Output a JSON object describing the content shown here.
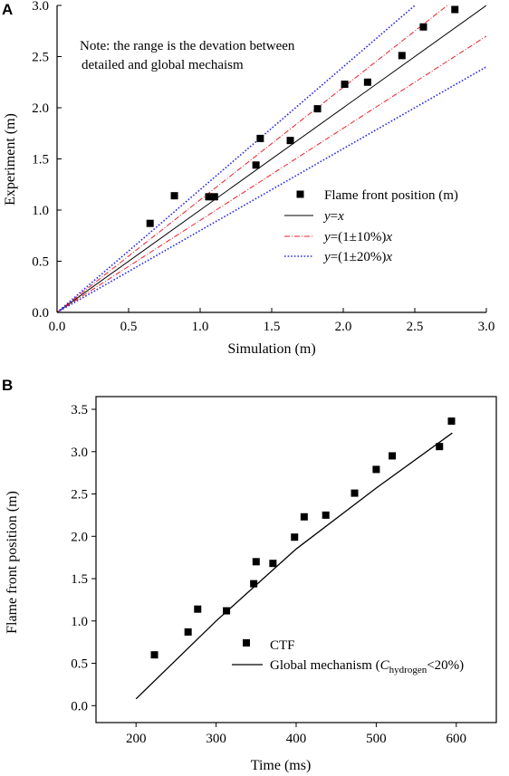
{
  "figure": {
    "panel_a_letter": "A",
    "panel_b_letter": "B"
  },
  "chart_data": [
    {
      "type": "scatter",
      "panel": "A",
      "xlabel": "Simulation (m)",
      "ylabel": "Experiment (m)",
      "xlim": [
        0,
        3.0
      ],
      "ylim": [
        0,
        3.0
      ],
      "x_ticks": [
        "0.0",
        "0.5",
        "1.0",
        "1.5",
        "2.0",
        "2.5",
        "3.0"
      ],
      "y_ticks": [
        "0.0",
        "0.5",
        "1.0",
        "1.5",
        "2.0",
        "2.5",
        "3.0"
      ],
      "grid": false,
      "legend_position": "right",
      "annotation_lines": [
        "Note: the range is the devation between",
        "detailed and global mechaism"
      ],
      "series": [
        {
          "name": "Flame front position (m)",
          "kind": "points",
          "marker": "square",
          "color": "#000000",
          "points": [
            [
              0.65,
              0.87
            ],
            [
              0.82,
              1.14
            ],
            [
              1.06,
              1.13
            ],
            [
              1.1,
              1.13
            ],
            [
              1.39,
              1.44
            ],
            [
              1.42,
              1.7
            ],
            [
              1.63,
              1.68
            ],
            [
              1.82,
              1.99
            ],
            [
              2.01,
              2.23
            ],
            [
              2.17,
              2.25
            ],
            [
              2.41,
              2.51
            ],
            [
              2.56,
              2.79
            ],
            [
              2.78,
              2.96
            ]
          ]
        },
        {
          "name": "y=x",
          "legend_parts": [
            "y",
            "=",
            "x"
          ],
          "kind": "line",
          "slope": 1.0,
          "color": "#000000",
          "dash": "solid"
        },
        {
          "name": "y=(1±10%)x",
          "legend_parts": [
            "y",
            "=(1±10%)",
            "x"
          ],
          "kind": "line",
          "slopes": [
            1.1,
            0.9
          ],
          "color": "#e8202a",
          "dash": "dashdot"
        },
        {
          "name": "y=(1±20%)x",
          "legend_parts": [
            "y",
            "=(1±20%)",
            "x"
          ],
          "kind": "line",
          "slopes": [
            1.2,
            0.8
          ],
          "color": "#2a2ae8",
          "dash": "dotted"
        }
      ]
    },
    {
      "type": "scatter",
      "panel": "B",
      "xlabel": "Time (ms)",
      "ylabel": "Flame front position (m)",
      "xlim": [
        150,
        650
      ],
      "ylim": [
        -0.2,
        3.65
      ],
      "x_ticks": [
        "200",
        "300",
        "400",
        "500",
        "600"
      ],
      "y_ticks": [
        "0.0",
        "0.5",
        "1.0",
        "1.5",
        "2.0",
        "2.5",
        "3.0",
        "3.5"
      ],
      "grid": false,
      "legend_position": "bottom-right",
      "series": [
        {
          "name": "CTF",
          "kind": "points",
          "marker": "square",
          "color": "#000000",
          "points": [
            [
              223,
              0.6
            ],
            [
              265,
              0.87
            ],
            [
              277,
              1.14
            ],
            [
              313,
              1.12
            ],
            [
              347,
              1.44
            ],
            [
              350,
              1.7
            ],
            [
              371,
              1.68
            ],
            [
              398,
              1.99
            ],
            [
              410,
              2.23
            ],
            [
              437,
              2.25
            ],
            [
              473,
              2.51
            ],
            [
              500,
              2.79
            ],
            [
              520,
              2.95
            ],
            [
              579,
              3.06
            ],
            [
              594,
              3.36
            ]
          ]
        },
        {
          "name": "Global mechanism (Chydrogen<20%)",
          "legend_parts": [
            "Global mechanism (",
            "C",
            "hydrogen",
            "<20%)"
          ],
          "kind": "polyline",
          "color": "#000000",
          "points": [
            [
              200,
              0.08
            ],
            [
              300,
              1.0
            ],
            [
              400,
              1.85
            ],
            [
              500,
              2.57
            ],
            [
              595,
              3.22
            ]
          ]
        }
      ]
    }
  ]
}
